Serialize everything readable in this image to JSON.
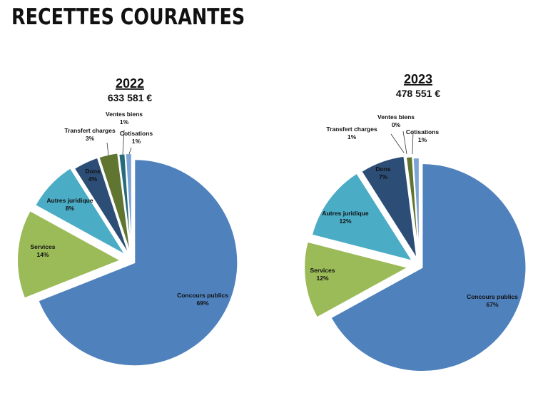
{
  "page": {
    "title": "RECETTES COURANTES"
  },
  "chart_data": [
    {
      "type": "pie",
      "title": "2022",
      "subtitle": "633 581 €",
      "categories": [
        "Concours publics",
        "Services",
        "Autres juridique",
        "Dons",
        "Transfert charges",
        "Ventes biens",
        "Cotisations"
      ],
      "values": [
        69,
        14,
        8,
        4,
        3,
        1,
        1
      ],
      "labels": [
        "69%",
        "14%",
        "8%",
        "4%",
        "3%",
        "1%",
        "1%"
      ],
      "colors": [
        "#4f81bd",
        "#9bbb59",
        "#4bacc6",
        "#2c4d75",
        "#5f7530",
        "#276a7c",
        "#7ba3d6"
      ]
    },
    {
      "type": "pie",
      "title": "2023",
      "subtitle": "478 551 €",
      "categories": [
        "Concours publics",
        "Services",
        "Autres juridique",
        "Dons",
        "Transfert charges",
        "Ventes biens",
        "Cotisations"
      ],
      "values": [
        67,
        12,
        12,
        7,
        1,
        0,
        1
      ],
      "labels": [
        "67%",
        "12%",
        "12%",
        "7%",
        "1%",
        "0%",
        "1%"
      ],
      "colors": [
        "#4f81bd",
        "#9bbb59",
        "#4bacc6",
        "#2c4d75",
        "#5f7530",
        "#276a7c",
        "#7ba3d6"
      ]
    }
  ]
}
